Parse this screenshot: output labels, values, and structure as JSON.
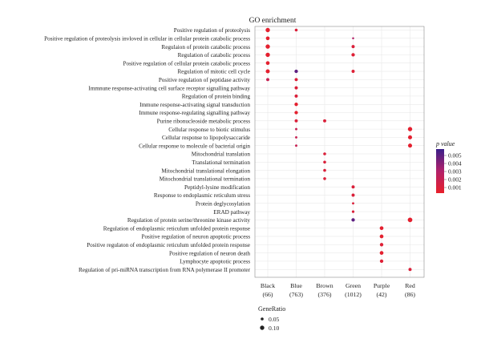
{
  "chart_data": {
    "type": "scatter",
    "title": "GO enrichment",
    "xlabel": "",
    "ylabel": "",
    "grid": true,
    "categories": [
      {
        "name": "Black",
        "count": "(66)"
      },
      {
        "name": "Blue",
        "count": "(763)"
      },
      {
        "name": "Brown",
        "count": "(376)"
      },
      {
        "name": "Green",
        "count": "(1012)"
      },
      {
        "name": "Purple",
        "count": "(42)"
      },
      {
        "name": "Red",
        "count": "(86)"
      }
    ],
    "terms": [
      "Positive regulation of proteolysis",
      "Positive regulation of proteolysis invloved in cellular in cellular protein catabolic process",
      "Regulaion of protein catabolic process",
      "Regulation of catabolic process",
      "Positive regulation of cellular protein catabolic process",
      "Regulation of mitotic cell cycle",
      "Positive regulation of peptidase activity",
      "Immnune response-activating cell surface receptor signalling pathway",
      "Regulation of protein binding",
      "Immune response-activating signal transduction",
      "Immune response-regulating signalling pathway",
      "Purine ribonucleoside metabolic process",
      "Cellular response to biotic stimulus",
      "Cellular response to lipopolysaccaride",
      "Cellular response to molecule of bacterial origin",
      "Mitochondrial translation",
      "Translational termination",
      "Mitochondrial translational elongation",
      "Mitochondrial translational termination",
      "Peptidyl-lysine modification",
      "Response to endoplasmic reticulum stress",
      "Protein deglycosylation",
      "ERAD pathway",
      "Regulation of protein serine/threonine kinase activity",
      "Regulation of endoplasmic reticulum unfolded protein response",
      "Positive regulation of neuron apoptotic process",
      "Positive regulaton of endoplasmic reticulum unfolded protein response",
      "Positive regulation of neuron death",
      "Lymphocyte apoptotic process",
      "Regulation of pri-miRNA transcription from RNA polymerase II promoter"
    ],
    "points": [
      {
        "term": 0,
        "category": "Black",
        "gene_ratio": 0.1,
        "p_value": 0.0005
      },
      {
        "term": 0,
        "category": "Blue",
        "gene_ratio": 0.05,
        "p_value": 0.001
      },
      {
        "term": 1,
        "category": "Black",
        "gene_ratio": 0.08,
        "p_value": 0.0005
      },
      {
        "term": 1,
        "category": "Green",
        "gene_ratio": 0.02,
        "p_value": 0.003
      },
      {
        "term": 2,
        "category": "Black",
        "gene_ratio": 0.1,
        "p_value": 0.0005
      },
      {
        "term": 2,
        "category": "Green",
        "gene_ratio": 0.06,
        "p_value": 0.001
      },
      {
        "term": 3,
        "category": "Black",
        "gene_ratio": 0.1,
        "p_value": 0.0005
      },
      {
        "term": 3,
        "category": "Green",
        "gene_ratio": 0.07,
        "p_value": 0.0008
      },
      {
        "term": 4,
        "category": "Black",
        "gene_ratio": 0.08,
        "p_value": 0.0005
      },
      {
        "term": 5,
        "category": "Black",
        "gene_ratio": 0.09,
        "p_value": 0.0005
      },
      {
        "term": 5,
        "category": "Blue",
        "gene_ratio": 0.07,
        "p_value": 0.005
      },
      {
        "term": 5,
        "category": "Green",
        "gene_ratio": 0.06,
        "p_value": 0.0008
      },
      {
        "term": 6,
        "category": "Black",
        "gene_ratio": 0.06,
        "p_value": 0.002
      },
      {
        "term": 6,
        "category": "Blue",
        "gene_ratio": 0.06,
        "p_value": 0.001
      },
      {
        "term": 7,
        "category": "Blue",
        "gene_ratio": 0.06,
        "p_value": 0.001
      },
      {
        "term": 8,
        "category": "Blue",
        "gene_ratio": 0.06,
        "p_value": 0.001
      },
      {
        "term": 9,
        "category": "Blue",
        "gene_ratio": 0.07,
        "p_value": 0.0005
      },
      {
        "term": 10,
        "category": "Blue",
        "gene_ratio": 0.07,
        "p_value": 0.0005
      },
      {
        "term": 11,
        "category": "Blue",
        "gene_ratio": 0.06,
        "p_value": 0.001
      },
      {
        "term": 11,
        "category": "Brown",
        "gene_ratio": 0.06,
        "p_value": 0.001
      },
      {
        "term": 12,
        "category": "Blue",
        "gene_ratio": 0.03,
        "p_value": 0.002
      },
      {
        "term": 12,
        "category": "Red",
        "gene_ratio": 0.1,
        "p_value": 0.0005
      },
      {
        "term": 13,
        "category": "Blue",
        "gene_ratio": 0.03,
        "p_value": 0.002
      },
      {
        "term": 13,
        "category": "Red",
        "gene_ratio": 0.09,
        "p_value": 0.0005
      },
      {
        "term": 14,
        "category": "Blue",
        "gene_ratio": 0.03,
        "p_value": 0.002
      },
      {
        "term": 14,
        "category": "Red",
        "gene_ratio": 0.09,
        "p_value": 0.0005
      },
      {
        "term": 15,
        "category": "Brown",
        "gene_ratio": 0.05,
        "p_value": 0.001
      },
      {
        "term": 16,
        "category": "Brown",
        "gene_ratio": 0.05,
        "p_value": 0.001
      },
      {
        "term": 17,
        "category": "Brown",
        "gene_ratio": 0.05,
        "p_value": 0.001
      },
      {
        "term": 18,
        "category": "Brown",
        "gene_ratio": 0.05,
        "p_value": 0.001
      },
      {
        "term": 19,
        "category": "Green",
        "gene_ratio": 0.06,
        "p_value": 0.001
      },
      {
        "term": 20,
        "category": "Green",
        "gene_ratio": 0.06,
        "p_value": 0.001
      },
      {
        "term": 21,
        "category": "Green",
        "gene_ratio": 0.03,
        "p_value": 0.001
      },
      {
        "term": 22,
        "category": "Green",
        "gene_ratio": 0.04,
        "p_value": 0.001
      },
      {
        "term": 23,
        "category": "Green",
        "gene_ratio": 0.07,
        "p_value": 0.005
      },
      {
        "term": 23,
        "category": "Red",
        "gene_ratio": 0.11,
        "p_value": 0.0005
      },
      {
        "term": 24,
        "category": "Purple",
        "gene_ratio": 0.08,
        "p_value": 0.0005
      },
      {
        "term": 25,
        "category": "Purple",
        "gene_ratio": 0.08,
        "p_value": 0.0005
      },
      {
        "term": 26,
        "category": "Purple",
        "gene_ratio": 0.07,
        "p_value": 0.0008
      },
      {
        "term": 27,
        "category": "Purple",
        "gene_ratio": 0.08,
        "p_value": 0.0005
      },
      {
        "term": 28,
        "category": "Purple",
        "gene_ratio": 0.07,
        "p_value": 0.0008
      },
      {
        "term": 29,
        "category": "Red",
        "gene_ratio": 0.06,
        "p_value": 0.001
      }
    ],
    "colorbar": {
      "title": "p value",
      "ticks": [
        "0.005",
        "0.004",
        "0.003",
        "0.002",
        "0.001"
      ],
      "tick_values": [
        0.005,
        0.004,
        0.003,
        0.002,
        0.001
      ],
      "range": [
        0.0003,
        0.0058
      ],
      "low_color": "#e8202a",
      "mid_color": "#b2216a",
      "high_color": "#3a1f8a"
    },
    "size_legend": {
      "title": "GeneRatio",
      "entries": [
        {
          "label": "0.05",
          "value": 0.05
        },
        {
          "label": "0.10",
          "value": 0.1
        }
      ]
    },
    "grid_color": "#e4e4e4"
  }
}
